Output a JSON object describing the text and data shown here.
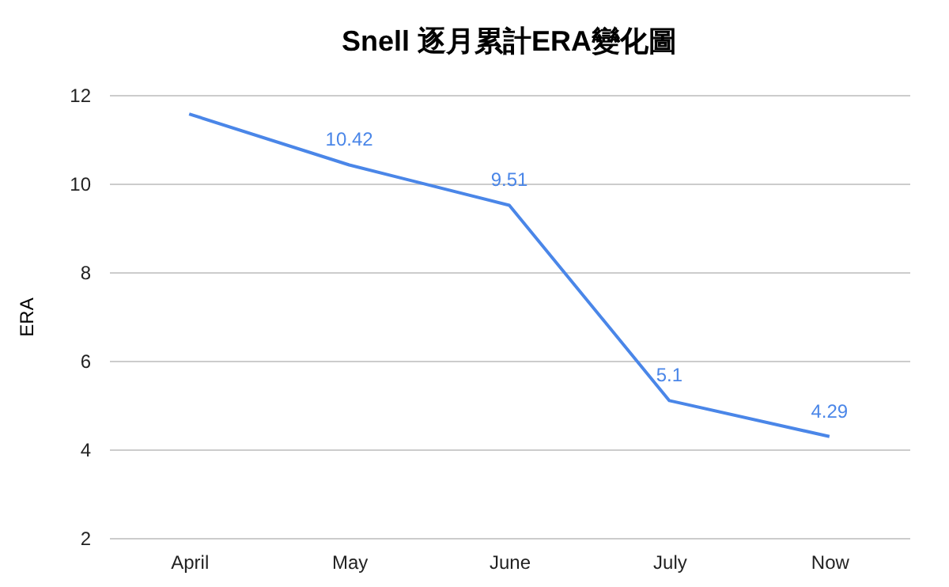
{
  "chart_data": {
    "type": "line",
    "title": "Snell 逐月累計ERA變化圖",
    "ylabel": "ERA",
    "categories": [
      "April",
      "May",
      "June",
      "July",
      "Now"
    ],
    "series": [
      {
        "color": "#4a86e8",
        "values": [
          11.57,
          10.42,
          9.51,
          5.1,
          4.29
        ],
        "value_labels": [
          null,
          "10.42",
          "9.51",
          "5.1",
          "4.29"
        ]
      }
    ],
    "ylim": [
      2,
      12
    ],
    "yticks": [
      2,
      4,
      6,
      8,
      10,
      12
    ],
    "grid": "y",
    "marker": "none",
    "line_style": "solid"
  }
}
